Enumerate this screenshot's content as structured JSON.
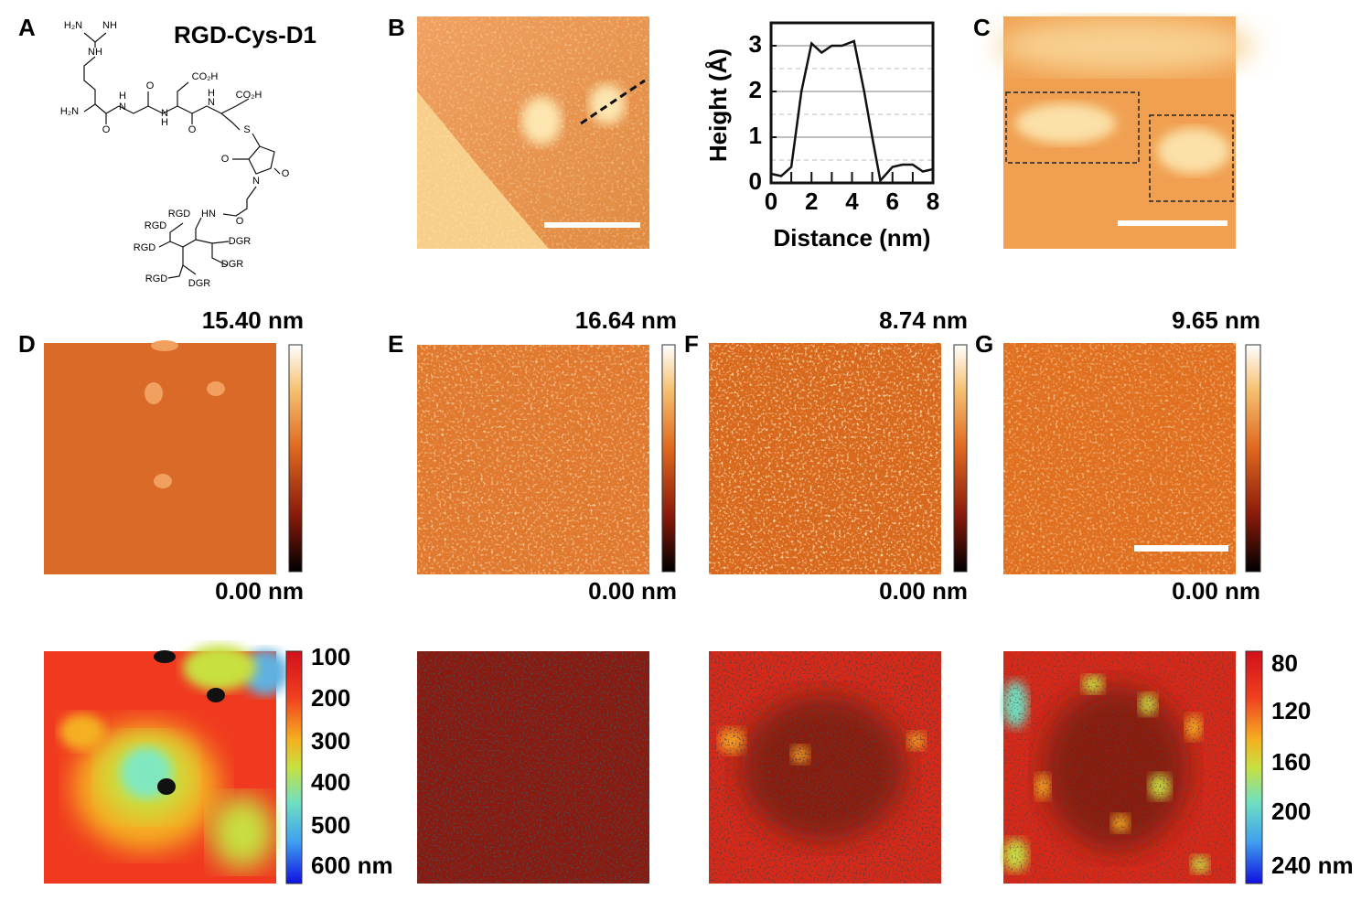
{
  "panel_labels": [
    "A",
    "B",
    "C",
    "D",
    "E",
    "F",
    "G"
  ],
  "molecule": {
    "name": "RGD-Cys-D1",
    "atoms": [
      "H₂N",
      "NH",
      "NH",
      "H₂N",
      "O",
      "N",
      "H",
      "O",
      "CO₂H",
      "N",
      "H",
      "O",
      "N",
      "H",
      "CO₂H",
      "S",
      "O",
      "N",
      "O",
      "HN",
      "O",
      "RGD",
      "RGD",
      "RGD",
      "RGD",
      "DGR",
      "DGR",
      "DGR"
    ]
  },
  "chart_data": {
    "type": "line",
    "xlabel": "Distance (nm)",
    "ylabel": "Height (Å)",
    "x": [
      0,
      0.5,
      1,
      1.5,
      2,
      2.5,
      3,
      3.5,
      4.1,
      4.6,
      5,
      5.4,
      6,
      6.5,
      7,
      7.5,
      8
    ],
    "values": [
      0.2,
      0.15,
      0.35,
      2,
      3.05,
      2.85,
      3.0,
      3.0,
      3.1,
      2.0,
      1.0,
      0.05,
      0.35,
      0.4,
      0.4,
      0.25,
      0.3
    ],
    "color": "#111111",
    "xlim": [
      0,
      8
    ],
    "ylim": [
      0,
      3.5
    ],
    "xticks": [
      0,
      2,
      4,
      6,
      8
    ],
    "yticks": [
      0,
      1,
      2,
      3
    ],
    "yminorticks": [
      0.5,
      1.5,
      2.5
    ],
    "grid": true
  },
  "height_scales": [
    {
      "max": "15.40 nm",
      "min": "0.00 nm"
    },
    {
      "max": "16.64 nm",
      "min": "0.00 nm"
    },
    {
      "max": "8.74 nm",
      "min": "0.00 nm"
    },
    {
      "max": "9.65 nm",
      "min": "0.00 nm"
    }
  ],
  "contour_scale_left": [
    "100",
    "200",
    "300",
    "400",
    "500",
    "600 nm"
  ],
  "contour_scale_right": [
    "80",
    "120",
    "160",
    "200",
    "240 nm"
  ]
}
